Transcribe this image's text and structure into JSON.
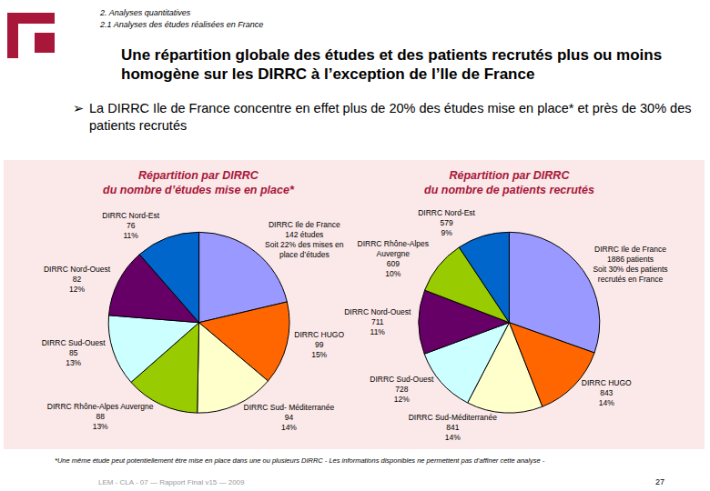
{
  "page": {
    "breadcrumb": [
      "2. Analyses quantitatives",
      "2.1 Analyses des études réalisées en France"
    ],
    "title": "Une répartition globale des études et des patients recrutés plus ou moins homogène sur les DIRRC à l’exception de l’Ile de France",
    "bullet": "La DIRRC Ile de France concentre en effet plus de 20% des études mise en place* et près de 30% des patients recrutés",
    "footnote": "*Une même étude peut potentiellement être mise en place dans une ou plusieurs DIRRC - Les informations disponibles ne permettent pas d’affiner cette analyse -",
    "footer": "LEM - CLA - 07 — Rapport Final v15 — 2009",
    "page_number": "27"
  },
  "chart_data": [
    {
      "type": "pie",
      "title": "Répartition par DIRRC\ndu nombre d’études mise en place*",
      "categories": [
        "DIRRC Ile de France",
        "DIRRC HUGO",
        "DIRRC Sud- Méditerranée",
        "DIRRC Rhône-Alpes Auvergne",
        "DIRRC Sud-Ouest",
        "DIRRC Nord-Ouest",
        "DIRRC Nord-Est"
      ],
      "values": [
        142,
        99,
        94,
        88,
        85,
        82,
        76
      ],
      "value_labels": [
        "DIRRC Ile de France\n142 études\nSoit 22% des mises en\nplace d’études",
        "DIRRC HUGO\n99\n15%",
        "DIRRC Sud- Méditerranée\n94\n14%",
        "DIRRC Rhône-Alpes Auvergne\n88\n13%",
        "DIRRC Sud-Ouest\n85\n13%",
        "DIRRC Nord-Ouest\n82\n12%",
        "DIRRC Nord-Est\n76\n11%"
      ],
      "colors": [
        "#9999FF",
        "#FF6600",
        "#FFFFCC",
        "#99CC00",
        "#CCFFFF",
        "#660066",
        "#0066CC"
      ],
      "data_labels": true
    },
    {
      "type": "pie",
      "title": "Répartition par DIRRC\ndu nombre de patients recrutés",
      "categories": [
        "DIRRC Ile de France",
        "DIRRC HUGO",
        "DIRRC Sud-Méditerranée",
        "DIRRC Sud-Ouest",
        "DIRRC Nord-Ouest",
        "DIRRC Rhône-Alpes Auvergne",
        "DIRRC Nord-Est"
      ],
      "values": [
        1886,
        843,
        841,
        728,
        711,
        609,
        579
      ],
      "value_labels": [
        "DIRRC Ile de France\n1886 patients\nSoit 30% des patients\nrecrutés en France",
        "DIRRC HUGO\n843\n14%",
        "DIRRC Sud-Méditerranée\n841\n14%",
        "DIRRC Sud-Ouest\n728\n12%",
        "DIRRC Nord-Ouest\n711\n11%",
        "DIRRC Rhône-Alpes\nAuvergne\n609\n10%",
        "DIRRC Nord-Est\n579\n9%"
      ],
      "colors": [
        "#9999FF",
        "#FF6600",
        "#FFFFCC",
        "#CCFFFF",
        "#660066",
        "#99CC00",
        "#0066CC"
      ],
      "data_labels": true
    }
  ]
}
